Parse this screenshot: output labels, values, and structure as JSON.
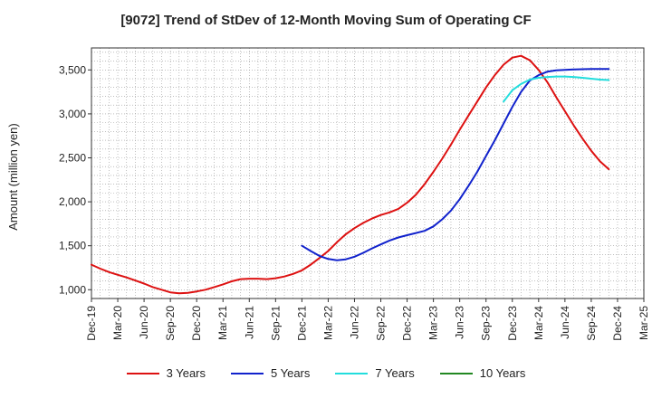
{
  "chart_data": {
    "type": "line",
    "title": "[9072]  Trend of StDev of 12-Month Moving Sum of Operating CF",
    "ylabel": "Amount (million yen)",
    "xlabel": "",
    "ylim": [
      900,
      3750
    ],
    "yticks": [
      1000,
      1500,
      2000,
      2500,
      3000,
      3500
    ],
    "ytick_labels": [
      "1,000",
      "1,500",
      "2,000",
      "2,500",
      "3,000",
      "3,500"
    ],
    "xlim": [
      "2019-12",
      "2025-03"
    ],
    "xtick_labels": [
      "Dec-19",
      "Mar-20",
      "Jun-20",
      "Sep-20",
      "Dec-20",
      "Mar-21",
      "Jun-21",
      "Sep-21",
      "Dec-21",
      "Mar-22",
      "Jun-22",
      "Sep-22",
      "Dec-22",
      "Mar-23",
      "Jun-23",
      "Sep-23",
      "Dec-23",
      "Mar-24",
      "Jun-24",
      "Sep-24",
      "Dec-24",
      "Mar-25"
    ],
    "grid": true,
    "legend_position": "bottom",
    "series": [
      {
        "name": "3 Years",
        "color": "#dd1111",
        "points": [
          [
            "2019-12",
            1285
          ],
          [
            "2020-01",
            1240
          ],
          [
            "2020-02",
            1200
          ],
          [
            "2020-03",
            1170
          ],
          [
            "2020-04",
            1140
          ],
          [
            "2020-05",
            1105
          ],
          [
            "2020-06",
            1070
          ],
          [
            "2020-07",
            1030
          ],
          [
            "2020-08",
            1000
          ],
          [
            "2020-09",
            970
          ],
          [
            "2020-10",
            960
          ],
          [
            "2020-11",
            965
          ],
          [
            "2020-12",
            980
          ],
          [
            "2021-01",
            1000
          ],
          [
            "2021-02",
            1030
          ],
          [
            "2021-03",
            1060
          ],
          [
            "2021-04",
            1095
          ],
          [
            "2021-05",
            1120
          ],
          [
            "2021-06",
            1125
          ],
          [
            "2021-07",
            1125
          ],
          [
            "2021-08",
            1120
          ],
          [
            "2021-09",
            1130
          ],
          [
            "2021-10",
            1150
          ],
          [
            "2021-11",
            1180
          ],
          [
            "2021-12",
            1220
          ],
          [
            "2022-01",
            1285
          ],
          [
            "2022-02",
            1360
          ],
          [
            "2022-03",
            1440
          ],
          [
            "2022-04",
            1540
          ],
          [
            "2022-05",
            1630
          ],
          [
            "2022-06",
            1700
          ],
          [
            "2022-07",
            1760
          ],
          [
            "2022-08",
            1810
          ],
          [
            "2022-09",
            1850
          ],
          [
            "2022-10",
            1880
          ],
          [
            "2022-11",
            1920
          ],
          [
            "2022-12",
            1990
          ],
          [
            "2023-01",
            2080
          ],
          [
            "2023-02",
            2200
          ],
          [
            "2023-03",
            2340
          ],
          [
            "2023-04",
            2490
          ],
          [
            "2023-05",
            2650
          ],
          [
            "2023-06",
            2820
          ],
          [
            "2023-07",
            2980
          ],
          [
            "2023-08",
            3140
          ],
          [
            "2023-09",
            3300
          ],
          [
            "2023-10",
            3440
          ],
          [
            "2023-11",
            3560
          ],
          [
            "2023-12",
            3640
          ],
          [
            "2024-01",
            3660
          ],
          [
            "2024-02",
            3610
          ],
          [
            "2024-03",
            3500
          ],
          [
            "2024-04",
            3360
          ],
          [
            "2024-05",
            3190
          ],
          [
            "2024-06",
            3030
          ],
          [
            "2024-07",
            2870
          ],
          [
            "2024-08",
            2720
          ],
          [
            "2024-09",
            2580
          ],
          [
            "2024-10",
            2460
          ],
          [
            "2024-11",
            2370
          ]
        ]
      },
      {
        "name": "5 Years",
        "color": "#1122cc",
        "points": [
          [
            "2021-12",
            1500
          ],
          [
            "2022-01",
            1440
          ],
          [
            "2022-02",
            1385
          ],
          [
            "2022-03",
            1350
          ],
          [
            "2022-04",
            1335
          ],
          [
            "2022-05",
            1345
          ],
          [
            "2022-06",
            1375
          ],
          [
            "2022-07",
            1420
          ],
          [
            "2022-08",
            1470
          ],
          [
            "2022-09",
            1515
          ],
          [
            "2022-10",
            1560
          ],
          [
            "2022-11",
            1595
          ],
          [
            "2022-12",
            1620
          ],
          [
            "2023-01",
            1645
          ],
          [
            "2023-02",
            1670
          ],
          [
            "2023-03",
            1720
          ],
          [
            "2023-04",
            1800
          ],
          [
            "2023-05",
            1900
          ],
          [
            "2023-06",
            2030
          ],
          [
            "2023-07",
            2180
          ],
          [
            "2023-08",
            2340
          ],
          [
            "2023-09",
            2520
          ],
          [
            "2023-10",
            2700
          ],
          [
            "2023-11",
            2890
          ],
          [
            "2023-12",
            3080
          ],
          [
            "2024-01",
            3250
          ],
          [
            "2024-02",
            3380
          ],
          [
            "2024-03",
            3440
          ],
          [
            "2024-04",
            3480
          ],
          [
            "2024-05",
            3495
          ],
          [
            "2024-06",
            3500
          ],
          [
            "2024-07",
            3505
          ],
          [
            "2024-08",
            3508
          ],
          [
            "2024-09",
            3510
          ],
          [
            "2024-10",
            3510
          ],
          [
            "2024-11",
            3510
          ]
        ]
      },
      {
        "name": "7 Years",
        "color": "#22dddd",
        "points": [
          [
            "2023-11",
            3140
          ],
          [
            "2023-12",
            3270
          ],
          [
            "2024-01",
            3340
          ],
          [
            "2024-02",
            3390
          ],
          [
            "2024-03",
            3410
          ],
          [
            "2024-04",
            3420
          ],
          [
            "2024-05",
            3425
          ],
          [
            "2024-06",
            3425
          ],
          [
            "2024-07",
            3420
          ],
          [
            "2024-08",
            3410
          ],
          [
            "2024-09",
            3400
          ],
          [
            "2024-10",
            3390
          ],
          [
            "2024-11",
            3385
          ]
        ]
      },
      {
        "name": "10 Years",
        "color": "#228822",
        "points": []
      }
    ]
  }
}
